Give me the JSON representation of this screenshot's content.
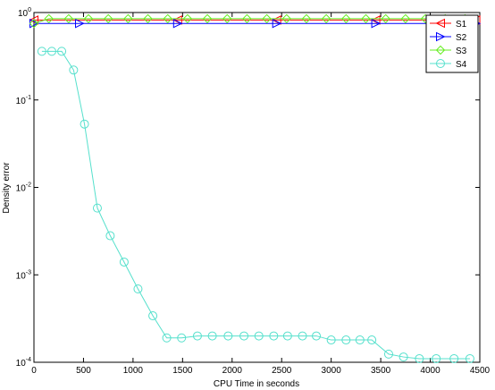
{
  "chart_data": {
    "type": "line",
    "xlabel": "CPU Time in seconds",
    "ylabel": "Density error",
    "xlim": [
      0,
      4500
    ],
    "xticks": [
      0,
      500,
      1000,
      1500,
      2000,
      2500,
      3000,
      3500,
      4000,
      4500
    ],
    "ylim": [
      0.0001,
      1
    ],
    "yticks": [
      {
        "value": 0.0001,
        "label": "10^-4"
      },
      {
        "value": 0.001,
        "label": "10^-3"
      },
      {
        "value": 0.01,
        "label": "10^-2"
      },
      {
        "value": 0.1,
        "label": "10^-1"
      },
      {
        "value": 1,
        "label": "10^0"
      }
    ],
    "yscale": "log",
    "grid": false,
    "legend": "upper right",
    "series": [
      {
        "name": "S1",
        "color": "#ff0000",
        "marker": "triangle-left",
        "x": [
          0,
          1450,
          2450,
          3450,
          4460
        ],
        "values": [
          0.82,
          0.82,
          0.82,
          0.82,
          0.82
        ]
      },
      {
        "name": "S2",
        "color": "#0000ff",
        "marker": "triangle-right",
        "x": [
          0,
          460,
          1450,
          2450,
          3450,
          4460
        ],
        "values": [
          0.75,
          0.75,
          0.75,
          0.75,
          0.75,
          0.75
        ]
      },
      {
        "name": "S3",
        "color": "#66ee22",
        "marker": "diamond",
        "x": [
          0,
          150,
          350,
          550,
          750,
          950,
          1150,
          1350,
          1550,
          1750,
          1950,
          2150,
          2350,
          2550,
          2750,
          2950,
          3150,
          3350,
          3550,
          3750,
          3950,
          4150,
          4350
        ],
        "values": [
          0.75,
          0.85,
          0.85,
          0.85,
          0.85,
          0.85,
          0.85,
          0.85,
          0.85,
          0.85,
          0.85,
          0.85,
          0.85,
          0.85,
          0.85,
          0.85,
          0.85,
          0.85,
          0.85,
          0.85,
          0.85,
          0.85,
          0.85
        ]
      },
      {
        "name": "S4",
        "color": "#55e0cc",
        "marker": "circle",
        "x": [
          80,
          180,
          280,
          400,
          510,
          640,
          770,
          910,
          1050,
          1200,
          1340,
          1490,
          1650,
          1800,
          1960,
          2120,
          2270,
          2420,
          2560,
          2710,
          2850,
          3000,
          3150,
          3290,
          3410,
          3580,
          3730,
          3890,
          4060,
          4240,
          4400
        ],
        "values": [
          0.36,
          0.36,
          0.36,
          0.22,
          0.053,
          0.0058,
          0.0028,
          0.0014,
          0.00069,
          0.00034,
          0.00019,
          0.00019,
          0.0002,
          0.0002,
          0.0002,
          0.0002,
          0.0002,
          0.0002,
          0.0002,
          0.0002,
          0.0002,
          0.00018,
          0.00018,
          0.00018,
          0.00018,
          0.000124,
          0.000115,
          0.00011,
          0.00011,
          0.00011,
          0.00011
        ]
      }
    ]
  }
}
